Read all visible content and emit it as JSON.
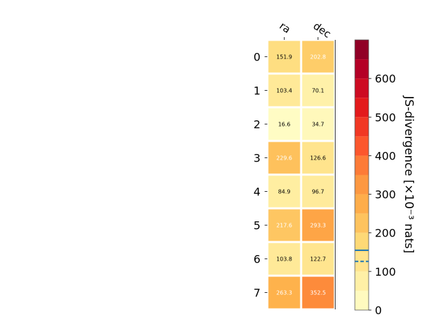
{
  "chart_data": {
    "type": "heatmap",
    "columns": [
      "ra",
      "dec"
    ],
    "rows": [
      "0",
      "1",
      "2",
      "3",
      "4",
      "5",
      "6",
      "7"
    ],
    "values": [
      [
        151.9,
        202.8
      ],
      [
        103.4,
        70.1
      ],
      [
        16.6,
        34.7
      ],
      [
        229.6,
        126.6
      ],
      [
        84.9,
        96.7
      ],
      [
        217.6,
        293.3
      ],
      [
        103.8,
        122.7
      ],
      [
        263.3,
        352.5
      ]
    ],
    "value_labels": [
      [
        "151.9",
        "202.8"
      ],
      [
        "103.4",
        "70.1"
      ],
      [
        "16.6",
        "34.7"
      ],
      [
        "229.6",
        "126.6"
      ],
      [
        "84.9",
        "96.7"
      ],
      [
        "217.6",
        "293.3"
      ],
      [
        "103.8",
        "122.7"
      ],
      [
        "263.3",
        "352.5"
      ]
    ],
    "colorbar": {
      "label": "JS-divergence [×10⁻³ nats]",
      "range": [
        0,
        700
      ],
      "ticks": [
        "0",
        "100",
        "200",
        "300",
        "400",
        "500",
        "600"
      ],
      "tick_values": [
        0,
        100,
        200,
        300,
        400,
        500,
        600
      ],
      "colormap": "YlOrRd",
      "markers": [
        {
          "value": 155,
          "style": "solid",
          "color": "#1f77b4"
        },
        {
          "value": 126,
          "style": "dashed",
          "color": "#1f77b4"
        }
      ]
    },
    "legend": "none",
    "grid": false
  }
}
